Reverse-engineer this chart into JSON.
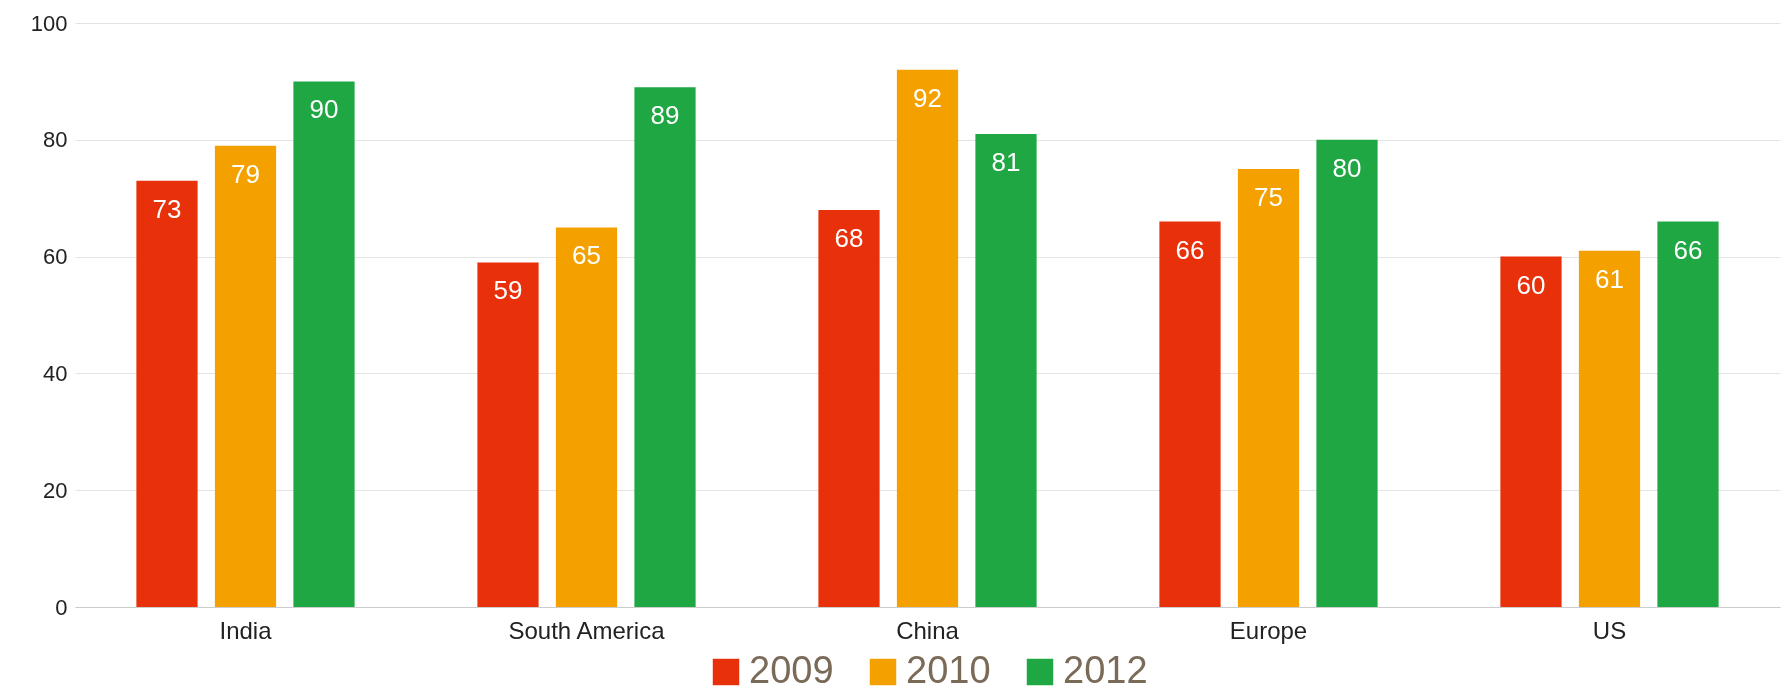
{
  "chart_data": {
    "type": "bar",
    "categories": [
      "India",
      "South America",
      "China",
      "Europe",
      "US"
    ],
    "series": [
      {
        "name": "2009",
        "color": "#e8300a",
        "values": [
          73,
          59,
          68,
          66,
          60
        ]
      },
      {
        "name": "2010",
        "color": "#f4a100",
        "values": [
          79,
          65,
          92,
          75,
          61
        ]
      },
      {
        "name": "2012",
        "color": "#1fa744",
        "values": [
          90,
          89,
          81,
          80,
          66
        ]
      }
    ],
    "ylim": [
      0,
      100
    ],
    "yticks": [
      0,
      20,
      40,
      60,
      80,
      100
    ],
    "grid": "y",
    "legend": "bottom",
    "data_labels": true
  }
}
